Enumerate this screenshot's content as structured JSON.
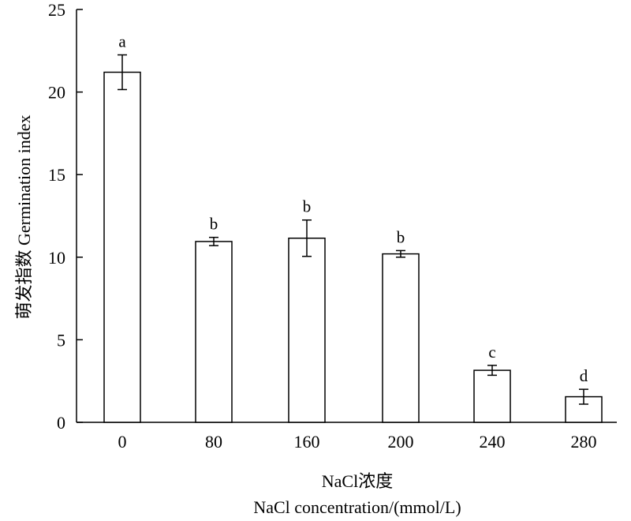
{
  "chart_data": {
    "type": "bar",
    "categories": [
      "0",
      "80",
      "160",
      "200",
      "240",
      "280"
    ],
    "values": [
      21.2,
      10.95,
      11.15,
      10.2,
      3.15,
      1.55
    ],
    "errors": [
      1.05,
      0.25,
      1.1,
      0.2,
      0.3,
      0.45
    ],
    "significance": [
      "a",
      "b",
      "b",
      "b",
      "c",
      "d"
    ],
    "xlabel_line1": "NaCl浓度",
    "xlabel_line2": "NaCl concentration/(mmol/L)",
    "ylabel": "萌发指数 Germination index",
    "ylim": [
      0,
      25
    ],
    "yticks": [
      "0",
      "5",
      "10",
      "15",
      "20",
      "25"
    ],
    "grid": false,
    "bar_fill": "#ffffff",
    "bar_stroke": "#000000"
  }
}
